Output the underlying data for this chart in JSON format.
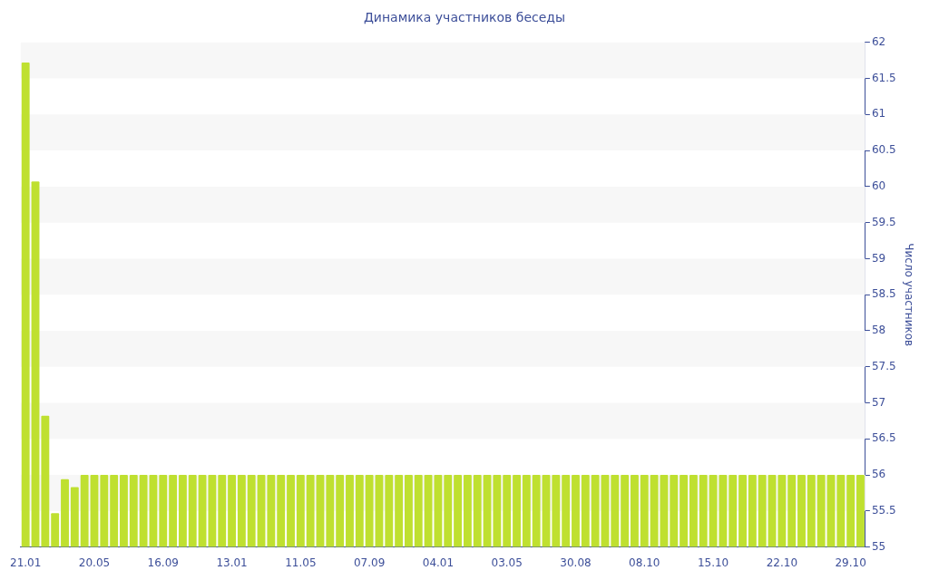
{
  "chart_data": {
    "type": "bar",
    "title": "Динамика участников беседы",
    "ylabel": "Число участников",
    "categories": [
      "21.01",
      null,
      null,
      null,
      null,
      null,
      null,
      "20.05",
      null,
      null,
      null,
      null,
      null,
      null,
      "16.09",
      null,
      null,
      null,
      null,
      null,
      null,
      "13.01",
      null,
      null,
      null,
      null,
      null,
      null,
      "11.05",
      null,
      null,
      null,
      null,
      null,
      null,
      "07.09",
      null,
      null,
      null,
      null,
      null,
      null,
      "04.01",
      null,
      null,
      null,
      null,
      null,
      null,
      "03.05",
      null,
      null,
      null,
      null,
      null,
      null,
      "30.08",
      null,
      null,
      null,
      null,
      null,
      null,
      "08.10",
      null,
      null,
      null,
      null,
      null,
      null,
      "15.10",
      null,
      null,
      null,
      null,
      null,
      null,
      "22.10",
      null,
      null,
      null,
      null,
      null,
      null,
      "29.10",
      null
    ],
    "values": [
      61.72,
      60.07,
      56.82,
      55.47,
      55.94,
      55.83,
      56,
      56,
      56,
      56,
      56,
      56,
      56,
      56,
      56,
      56,
      56,
      56,
      56,
      56,
      56,
      56,
      56,
      56,
      56,
      56,
      56,
      56,
      56,
      56,
      56,
      56,
      56,
      56,
      56,
      56,
      56,
      56,
      56,
      56,
      56,
      56,
      56,
      56,
      56,
      56,
      56,
      56,
      56,
      56,
      56,
      56,
      56,
      56,
      56,
      56,
      56,
      56,
      56,
      56,
      56,
      56,
      56,
      56,
      56,
      56,
      56,
      56,
      56,
      56,
      56,
      56,
      56,
      56,
      56,
      56,
      56,
      56,
      56,
      56,
      56,
      56,
      56,
      56,
      56,
      56
    ],
    "color": "#bfe030",
    "ylim": [
      55,
      62
    ],
    "yticks": [
      55,
      55.5,
      56,
      56.5,
      57,
      57.5,
      58,
      58.5,
      59,
      59.5,
      60,
      60.5,
      61,
      61.5,
      62
    ],
    "legend": false,
    "bands": [
      {
        "axis": "y",
        "from": 61.5,
        "to": 62,
        "color": "#f7f7f7"
      },
      {
        "axis": "y",
        "from": 60.5,
        "to": 61,
        "color": "#f7f7f7"
      },
      {
        "axis": "y",
        "from": 59.5,
        "to": 60,
        "color": "#f7f7f7"
      },
      {
        "axis": "y",
        "from": 58.5,
        "to": 59,
        "color": "#f7f7f7"
      },
      {
        "axis": "y",
        "from": 57.5,
        "to": 58,
        "color": "#f7f7f7"
      },
      {
        "axis": "y",
        "from": 56.5,
        "to": 57,
        "color": "#f7f7f7"
      },
      {
        "axis": "y",
        "from": 55.5,
        "to": 56,
        "color": "#f7f7f7"
      }
    ]
  }
}
